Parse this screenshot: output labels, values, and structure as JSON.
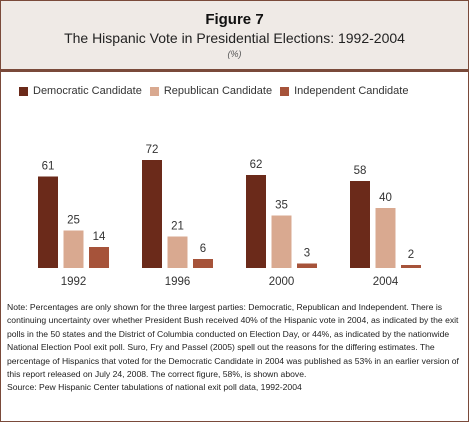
{
  "figure": {
    "number": "Figure 7",
    "title": "The Hispanic Vote in Presidential Elections: 1992-2004",
    "unit": "(%)"
  },
  "colors": {
    "democratic": "#6b2a1a",
    "republican": "#d9a990",
    "independent": "#a6533a",
    "border": "#7a4a3a",
    "header_bg": "#efeae6"
  },
  "chart_data": {
    "type": "bar",
    "categories": [
      "1992",
      "1996",
      "2000",
      "2004"
    ],
    "series": [
      {
        "name": "Democratic Candidate",
        "values": [
          61,
          72,
          62,
          58
        ]
      },
      {
        "name": "Republican Candidate",
        "values": [
          25,
          21,
          35,
          40
        ]
      },
      {
        "name": "Independent Candidate",
        "values": [
          14,
          6,
          3,
          2
        ]
      }
    ],
    "ylim": [
      0,
      80
    ],
    "grid": false,
    "legend_position": "top"
  },
  "note": "Note: Percentages are only shown for the three largest parties: Democratic, Republican and Independent. There is continuing uncertainty over whether President Bush received 40% of the Hispanic vote in 2004, as indicated by the exit polls in the 50 states and the District of Columbia conducted on Election Day, or 44%, as indicated by the nationwide National Election Pool exit poll. Suro, Fry and Passel (2005) spell out the reasons for the differing estimates. The percentage of Hispanics that voted for the Democratic Candidate in 2004 was published as 53% in an earlier version of this report released on July 24, 2008. The correct figure, 58%, is shown above.",
  "source": "Source: Pew Hispanic Center tabulations of national exit poll data, 1992-2004"
}
